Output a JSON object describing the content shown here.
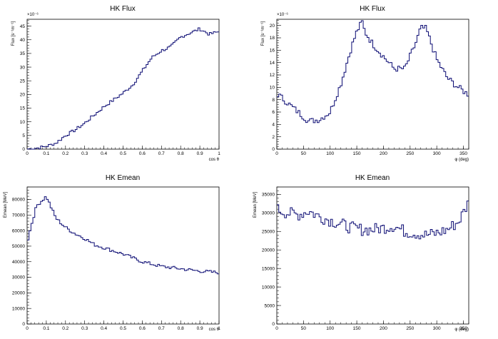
{
  "chart_data": [
    {
      "type": "line",
      "title": "HK Flux",
      "xlabel": "cos θ",
      "ylabel": "Flux [s⁻¹m⁻¹]",
      "y_multiplier": "×10⁻⁶",
      "xlim": [
        0,
        1
      ],
      "ylim": [
        0,
        47.5
      ],
      "x_ticks": [
        "0",
        "0.1",
        "0.2",
        "0.3",
        "0.4",
        "0.5",
        "0.6",
        "0.7",
        "0.8",
        "0.9",
        "1"
      ],
      "y_ticks": [
        "0",
        "5",
        "10",
        "15",
        "20",
        "25",
        "30",
        "35",
        "40",
        "45"
      ],
      "series": [
        {
          "x": [
            0.0,
            0.05,
            0.1,
            0.15,
            0.2,
            0.25,
            0.3,
            0.35,
            0.4,
            0.45,
            0.5,
            0.55,
            0.6,
            0.65,
            0.7,
            0.75,
            0.8,
            0.85,
            0.9,
            0.95,
            1.0
          ],
          "y": [
            0,
            0.4,
            1.0,
            2.2,
            5.0,
            7.0,
            9.5,
            12.5,
            15.5,
            18.0,
            20.5,
            23.5,
            28.5,
            33.5,
            36.0,
            37.5,
            41.0,
            42.5,
            44.0,
            42.0,
            43.0
          ]
        }
      ]
    },
    {
      "type": "line",
      "title": "HK Flux",
      "xlabel": "φ (deg)",
      "ylabel": "Flux [s⁻¹m⁻¹]",
      "y_multiplier": "×10⁻⁶",
      "xlim": [
        0,
        360
      ],
      "ylim": [
        0,
        21
      ],
      "x_ticks": [
        "0",
        "50",
        "100",
        "150",
        "200",
        "250",
        "300",
        "350"
      ],
      "y_ticks": [
        "0",
        "2",
        "4",
        "6",
        "8",
        "10",
        "12",
        "14",
        "16",
        "18",
        "20"
      ],
      "series": [
        {
          "x": [
            0,
            20,
            40,
            60,
            80,
            100,
            120,
            140,
            150,
            160,
            165,
            180,
            200,
            220,
            240,
            260,
            270,
            280,
            290,
            300,
            320,
            340,
            360
          ],
          "y": [
            9.0,
            7.5,
            6.0,
            4.5,
            4.8,
            6.0,
            10.5,
            16.5,
            19.0,
            20.6,
            19.0,
            17.0,
            15.0,
            13.0,
            13.0,
            17.0,
            19.6,
            19.5,
            17.0,
            14.5,
            11.5,
            10.0,
            8.8
          ]
        }
      ]
    },
    {
      "type": "line",
      "title": "HK Emean",
      "xlabel": "cos θ",
      "ylabel": "Emean [MeV]",
      "xlim": [
        0,
        1
      ],
      "ylim": [
        0,
        88000
      ],
      "x_ticks": [
        "0",
        "0.1",
        "0.2",
        "0.3",
        "0.4",
        "0.5",
        "0.6",
        "0.7",
        "0.8",
        "0.9",
        "1"
      ],
      "y_ticks": [
        "0",
        "10000",
        "20000",
        "30000",
        "40000",
        "50000",
        "60000",
        "70000",
        "80000"
      ],
      "series": [
        {
          "x": [
            0.0,
            0.025,
            0.05,
            0.075,
            0.1,
            0.125,
            0.15,
            0.2,
            0.25,
            0.3,
            0.35,
            0.4,
            0.5,
            0.6,
            0.7,
            0.8,
            0.9,
            1.0
          ],
          "y": [
            52000,
            65000,
            76000,
            79000,
            82000,
            75000,
            68000,
            62000,
            58000,
            55000,
            51000,
            49000,
            45000,
            40000,
            37000,
            35500,
            34000,
            33000
          ]
        }
      ]
    },
    {
      "type": "line",
      "title": "HK Emean",
      "xlabel": "φ (deg)",
      "ylabel": "Emean [MeV]",
      "xlim": [
        0,
        360
      ],
      "ylim": [
        0,
        37000
      ],
      "x_ticks": [
        "0",
        "50",
        "100",
        "150",
        "200",
        "250",
        "300",
        "350"
      ],
      "y_ticks": [
        "0",
        "5000",
        "10000",
        "15000",
        "20000",
        "25000",
        "30000",
        "35000"
      ],
      "series": [
        {
          "x": [
            0,
            20,
            40,
            60,
            80,
            100,
            120,
            140,
            160,
            180,
            200,
            220,
            240,
            260,
            280,
            300,
            320,
            340,
            350,
            360
          ],
          "y": [
            31000,
            30000,
            29500,
            30500,
            29000,
            28000,
            27000,
            26000,
            25500,
            25500,
            26000,
            26500,
            25000,
            24500,
            24000,
            24500,
            25500,
            27500,
            30000,
            33000
          ]
        }
      ]
    }
  ]
}
